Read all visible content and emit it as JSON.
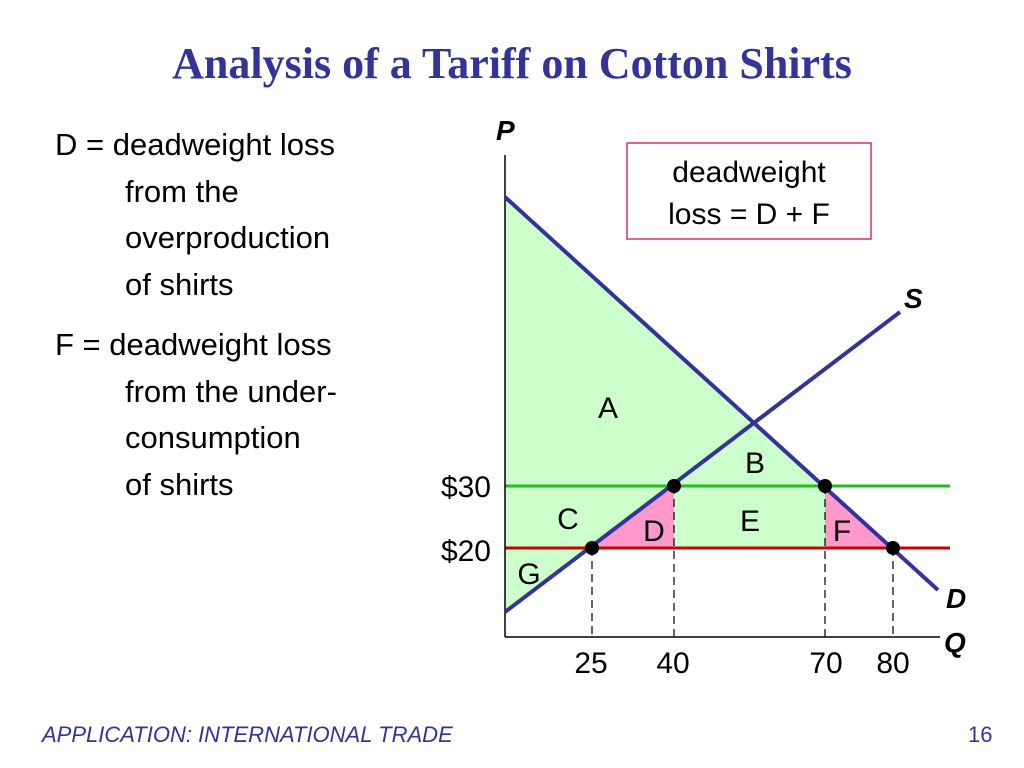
{
  "slide": {
    "title": "Analysis of a Tariff on Cotton Shirts",
    "footer": "APPLICATION:  INTERNATIONAL TRADE",
    "page_number": "16"
  },
  "definitions": [
    {
      "lines": [
        "D = deadweight loss",
        "from the",
        "overproduction",
        "of shirts"
      ]
    },
    {
      "lines": [
        "F = deadweight loss",
        "from the under-",
        "consumption",
        "of shirts"
      ]
    }
  ],
  "diagram": {
    "axis_y_label": "P",
    "axis_x_label": "Q",
    "supply_label": "S",
    "demand_label": "D",
    "callout_lines": [
      "deadweight",
      "loss = D + F"
    ],
    "price_labels": {
      "high": "$30",
      "low": "$20"
    },
    "quantity_labels": [
      "25",
      "40",
      "70",
      "80"
    ],
    "region_labels": {
      "A": "A",
      "B": "B",
      "C": "C",
      "D": "D",
      "E": "E",
      "F": "F",
      "G": "G"
    },
    "colors": {
      "curve": "#333399",
      "price_high_line": "#22bb22",
      "price_low_line": "#cc0000",
      "surplus_fill": "#ccffcc",
      "deadweight_fill": "#ff99cc",
      "callout_border": "#cc3366"
    }
  }
}
